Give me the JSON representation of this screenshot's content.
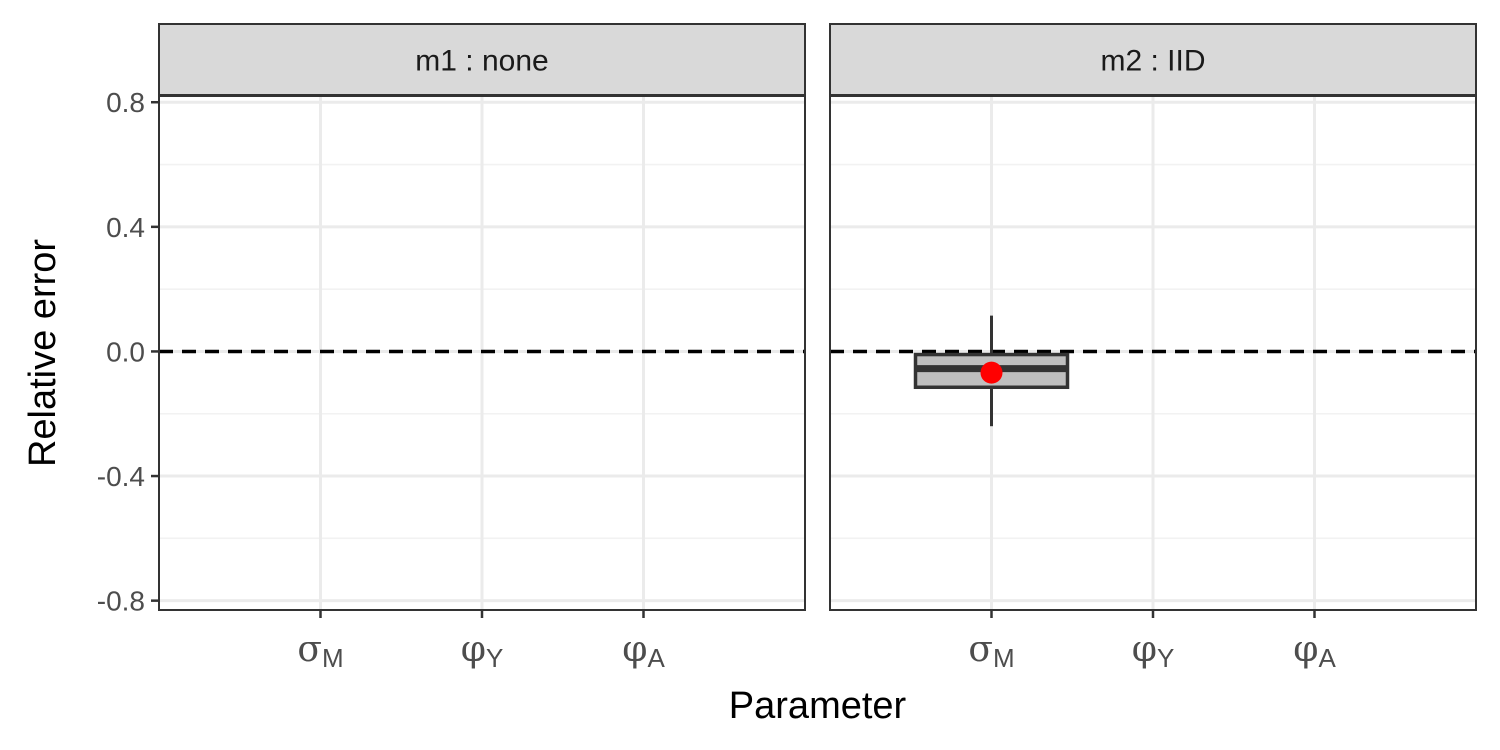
{
  "chart_data": {
    "type": "boxplot",
    "xlabel": "Parameter",
    "ylabel": "Relative error",
    "ylim": [
      -0.83,
      0.82
    ],
    "yticks": [
      -0.8,
      -0.4,
      0.0,
      0.4,
      0.8
    ],
    "ytick_labels": [
      "-0.8",
      "-0.4",
      "0.0",
      "0.4",
      "0.8"
    ],
    "categories": [
      {
        "symbol": "σ",
        "sub": "M"
      },
      {
        "symbol": "φ",
        "sub": "Y"
      },
      {
        "symbol": "φ",
        "sub": "A"
      }
    ],
    "reference_line": {
      "y": 0,
      "style": "dashed",
      "color": "#000000"
    },
    "grid": true,
    "colors": {
      "box_fill": "#bfbfbf",
      "box_stroke": "#333333",
      "mean_point": "#ff0000",
      "strip_fill": "#d9d9d9"
    },
    "panels": [
      {
        "label": "m1 : none",
        "boxes": []
      },
      {
        "label": "m2 : IID",
        "boxes": [
          {
            "category_index": 0,
            "whisker_low": -0.24,
            "q1": -0.115,
            "median": -0.055,
            "q3": -0.01,
            "whisker_high": 0.115,
            "mean": -0.068
          }
        ]
      }
    ]
  }
}
